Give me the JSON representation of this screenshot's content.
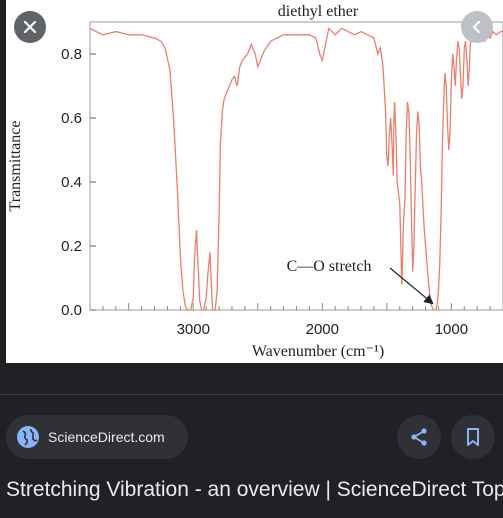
{
  "viewer": {
    "close_icon": "close-icon",
    "prev_icon": "chevron-left-icon"
  },
  "chart_data": {
    "type": "line",
    "title": "diethyl ether",
    "xlabel": "Wavenumber (cm⁻¹)",
    "ylabel": "Transmittance",
    "xlim": [
      3800,
      600
    ],
    "ylim": [
      0,
      0.9
    ],
    "x_ticks": [
      3000,
      2000,
      1000
    ],
    "x_tick_labels": [
      "3000",
      "2000",
      "1000"
    ],
    "y_ticks": [
      0.0,
      0.2,
      0.4,
      0.6,
      0.8
    ],
    "y_tick_labels": [
      "0.0",
      "0.2",
      "0.4",
      "0.6",
      "0.8"
    ],
    "annotation": "C—O stretch",
    "annotation_target": {
      "x": 1120,
      "y": 0.01
    },
    "line_color": "#e8806e",
    "series": [
      {
        "x": [
          3800,
          3700,
          3600,
          3500,
          3400,
          3300,
          3250,
          3220,
          3180,
          3150,
          3120,
          3100,
          3080,
          3060,
          3040,
          3020,
          3000,
          2990,
          2975,
          2960,
          2950,
          2935,
          2920,
          2900,
          2885,
          2870,
          2860,
          2850,
          2830,
          2815,
          2800,
          2790,
          2775,
          2760,
          2740,
          2720,
          2700,
          2680,
          2660,
          2640,
          2620,
          2600,
          2580,
          2550,
          2520,
          2500,
          2480,
          2450,
          2400,
          2300,
          2200,
          2100,
          2050,
          2020,
          2000,
          1980,
          1950,
          1900,
          1850,
          1800,
          1750,
          1700,
          1650,
          1600,
          1570,
          1550,
          1530,
          1510,
          1500,
          1490,
          1480,
          1470,
          1460,
          1450,
          1445,
          1440,
          1430,
          1420,
          1400,
          1390,
          1385,
          1380,
          1375,
          1370,
          1360,
          1350,
          1340,
          1330,
          1320,
          1310,
          1300,
          1290,
          1280,
          1270,
          1260,
          1250,
          1240,
          1230,
          1220,
          1210,
          1200,
          1190,
          1180,
          1170,
          1160,
          1150,
          1140,
          1130,
          1120,
          1110,
          1100,
          1090,
          1080,
          1070,
          1060,
          1050,
          1040,
          1030,
          1020,
          1010,
          1000,
          990,
          980,
          970,
          960,
          950,
          940,
          930,
          920,
          910,
          900,
          890,
          880,
          870,
          860,
          850,
          840,
          830,
          820,
          810,
          800,
          780,
          760,
          740,
          720,
          700,
          680,
          650,
          620,
          600
        ],
        "y": [
          0.88,
          0.86,
          0.87,
          0.86,
          0.86,
          0.85,
          0.84,
          0.82,
          0.75,
          0.58,
          0.35,
          0.17,
          0.06,
          0.01,
          0.0,
          0.0,
          0.04,
          0.16,
          0.25,
          0.12,
          0.03,
          0.0,
          0.0,
          0.04,
          0.12,
          0.18,
          0.08,
          0.0,
          0.0,
          0.06,
          0.3,
          0.52,
          0.62,
          0.66,
          0.68,
          0.7,
          0.72,
          0.73,
          0.7,
          0.76,
          0.78,
          0.79,
          0.8,
          0.83,
          0.8,
          0.76,
          0.78,
          0.81,
          0.84,
          0.86,
          0.86,
          0.86,
          0.85,
          0.8,
          0.78,
          0.82,
          0.88,
          0.86,
          0.88,
          0.87,
          0.86,
          0.87,
          0.86,
          0.85,
          0.8,
          0.82,
          0.76,
          0.62,
          0.48,
          0.45,
          0.55,
          0.6,
          0.52,
          0.42,
          0.6,
          0.65,
          0.55,
          0.4,
          0.33,
          0.18,
          0.08,
          0.12,
          0.22,
          0.28,
          0.35,
          0.55,
          0.65,
          0.62,
          0.5,
          0.3,
          0.12,
          0.2,
          0.38,
          0.55,
          0.62,
          0.58,
          0.45,
          0.4,
          0.32,
          0.25,
          0.2,
          0.15,
          0.1,
          0.06,
          0.02,
          0.01,
          0.0,
          0.0,
          0.0,
          0.02,
          0.06,
          0.15,
          0.3,
          0.5,
          0.65,
          0.74,
          0.7,
          0.58,
          0.5,
          0.56,
          0.72,
          0.8,
          0.76,
          0.7,
          0.78,
          0.84,
          0.82,
          0.74,
          0.66,
          0.7,
          0.82,
          0.84,
          0.78,
          0.7,
          0.76,
          0.86,
          0.84,
          0.85,
          0.88,
          0.86,
          0.84,
          0.86,
          0.85,
          0.84,
          0.86,
          0.85,
          0.87,
          0.86,
          0.87,
          0.87
        ]
      }
    ]
  },
  "source": {
    "label": "ScienceDirect.com",
    "icon": "globe-icon"
  },
  "actions": {
    "share_icon": "share-icon",
    "save_icon": "bookmark-icon"
  },
  "result": {
    "title": "Stretching Vibration - an overview | ScienceDirect Topics"
  },
  "colors": {
    "background": "#202124",
    "chip": "#303134",
    "text": "#e8eaed",
    "accent": "#8ab4f8"
  }
}
